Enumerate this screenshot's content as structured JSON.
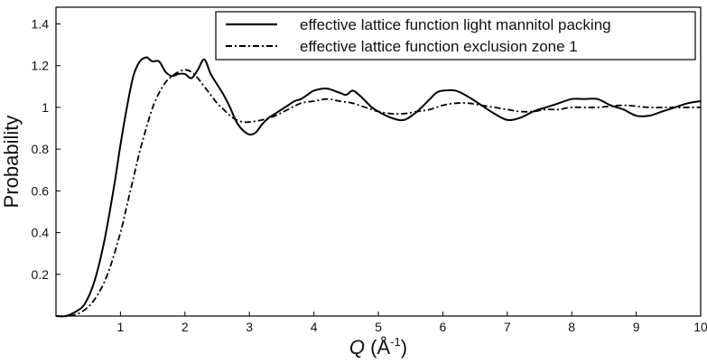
{
  "chart_data": {
    "type": "line",
    "title": "",
    "xlabel": {
      "symbol": "Q",
      "unit_prefix": " (Å",
      "unit_sup": "-1",
      "unit_suffix": ")"
    },
    "ylabel": "Probability",
    "xlim": [
      0,
      10
    ],
    "ylim": [
      0,
      1.48
    ],
    "xticks": [
      {
        "v": 1,
        "label": "1"
      },
      {
        "v": 2,
        "label": "2"
      },
      {
        "v": 3,
        "label": "3"
      },
      {
        "v": 4,
        "label": "4"
      },
      {
        "v": 5,
        "label": "5"
      },
      {
        "v": 6,
        "label": "6"
      },
      {
        "v": 7,
        "label": "7"
      },
      {
        "v": 8,
        "label": "8"
      },
      {
        "v": 9,
        "label": "9"
      },
      {
        "v": 10,
        "label": "10"
      }
    ],
    "yticks": [
      {
        "v": 0.2,
        "label": "0.2"
      },
      {
        "v": 0.4,
        "label": "0.4"
      },
      {
        "v": 0.6,
        "label": "0.6"
      },
      {
        "v": 0.8,
        "label": "0.8"
      },
      {
        "v": 1.0,
        "label": "1"
      },
      {
        "v": 1.2,
        "label": "1.2"
      },
      {
        "v": 1.4,
        "label": "1.4"
      }
    ],
    "grid": false,
    "legend_position": "top-right",
    "series": [
      {
        "name": "effective lattice function light mannitol packing",
        "style": "solid",
        "color": "#000000",
        "x": [
          0.0,
          0.15,
          0.3,
          0.45,
          0.6,
          0.75,
          0.9,
          1.0,
          1.1,
          1.2,
          1.3,
          1.4,
          1.45,
          1.5,
          1.6,
          1.7,
          1.8,
          1.9,
          2.0,
          2.1,
          2.2,
          2.3,
          2.4,
          2.5,
          2.6,
          2.7,
          2.8,
          2.9,
          3.0,
          3.1,
          3.2,
          3.3,
          3.4,
          3.5,
          3.6,
          3.7,
          3.8,
          3.9,
          4.0,
          4.2,
          4.4,
          4.5,
          4.6,
          4.7,
          4.8,
          4.9,
          5.0,
          5.2,
          5.4,
          5.6,
          5.8,
          5.9,
          6.0,
          6.2,
          6.4,
          6.6,
          6.8,
          7.0,
          7.2,
          7.4,
          7.6,
          7.8,
          8.0,
          8.2,
          8.4,
          8.6,
          8.8,
          9.0,
          9.2,
          9.4,
          9.6,
          9.8,
          10.0
        ],
        "y": [
          0.0,
          0.0,
          0.02,
          0.06,
          0.17,
          0.36,
          0.62,
          0.82,
          1.0,
          1.15,
          1.22,
          1.24,
          1.23,
          1.22,
          1.22,
          1.17,
          1.15,
          1.16,
          1.16,
          1.14,
          1.18,
          1.23,
          1.16,
          1.11,
          1.06,
          1.0,
          0.93,
          0.89,
          0.87,
          0.88,
          0.92,
          0.95,
          0.97,
          0.99,
          1.01,
          1.03,
          1.04,
          1.06,
          1.08,
          1.09,
          1.07,
          1.06,
          1.08,
          1.06,
          1.03,
          1.0,
          0.98,
          0.95,
          0.94,
          0.98,
          1.04,
          1.07,
          1.08,
          1.08,
          1.05,
          1.01,
          0.97,
          0.94,
          0.95,
          0.98,
          1.0,
          1.02,
          1.04,
          1.04,
          1.04,
          1.01,
          0.99,
          0.96,
          0.96,
          0.98,
          1.0,
          1.02,
          1.03
        ]
      },
      {
        "name": "effective lattice function exclusion zone 1",
        "style": "dashdot",
        "color": "#000000",
        "x": [
          0.0,
          0.2,
          0.4,
          0.6,
          0.8,
          1.0,
          1.1,
          1.2,
          1.3,
          1.4,
          1.5,
          1.6,
          1.7,
          1.8,
          1.9,
          2.0,
          2.1,
          2.2,
          2.3,
          2.4,
          2.5,
          2.6,
          2.7,
          2.8,
          2.9,
          3.0,
          3.2,
          3.4,
          3.6,
          3.8,
          4.0,
          4.2,
          4.4,
          4.6,
          4.8,
          5.0,
          5.2,
          5.4,
          5.6,
          5.8,
          6.0,
          6.2,
          6.4,
          6.6,
          6.8,
          7.0,
          7.2,
          7.4,
          7.6,
          7.8,
          8.0,
          8.4,
          8.8,
          9.2,
          9.6,
          10.0
        ],
        "y": [
          0.0,
          0.0,
          0.02,
          0.08,
          0.2,
          0.4,
          0.53,
          0.66,
          0.79,
          0.9,
          1.0,
          1.07,
          1.12,
          1.15,
          1.17,
          1.18,
          1.17,
          1.14,
          1.1,
          1.06,
          1.02,
          0.99,
          0.96,
          0.94,
          0.93,
          0.93,
          0.94,
          0.96,
          0.99,
          1.02,
          1.03,
          1.04,
          1.03,
          1.02,
          1.0,
          0.98,
          0.97,
          0.97,
          0.98,
          0.99,
          1.01,
          1.02,
          1.02,
          1.01,
          1.0,
          0.99,
          0.98,
          0.98,
          0.99,
          0.99,
          1.0,
          1.0,
          1.01,
          1.0,
          1.0,
          1.0
        ]
      }
    ]
  }
}
